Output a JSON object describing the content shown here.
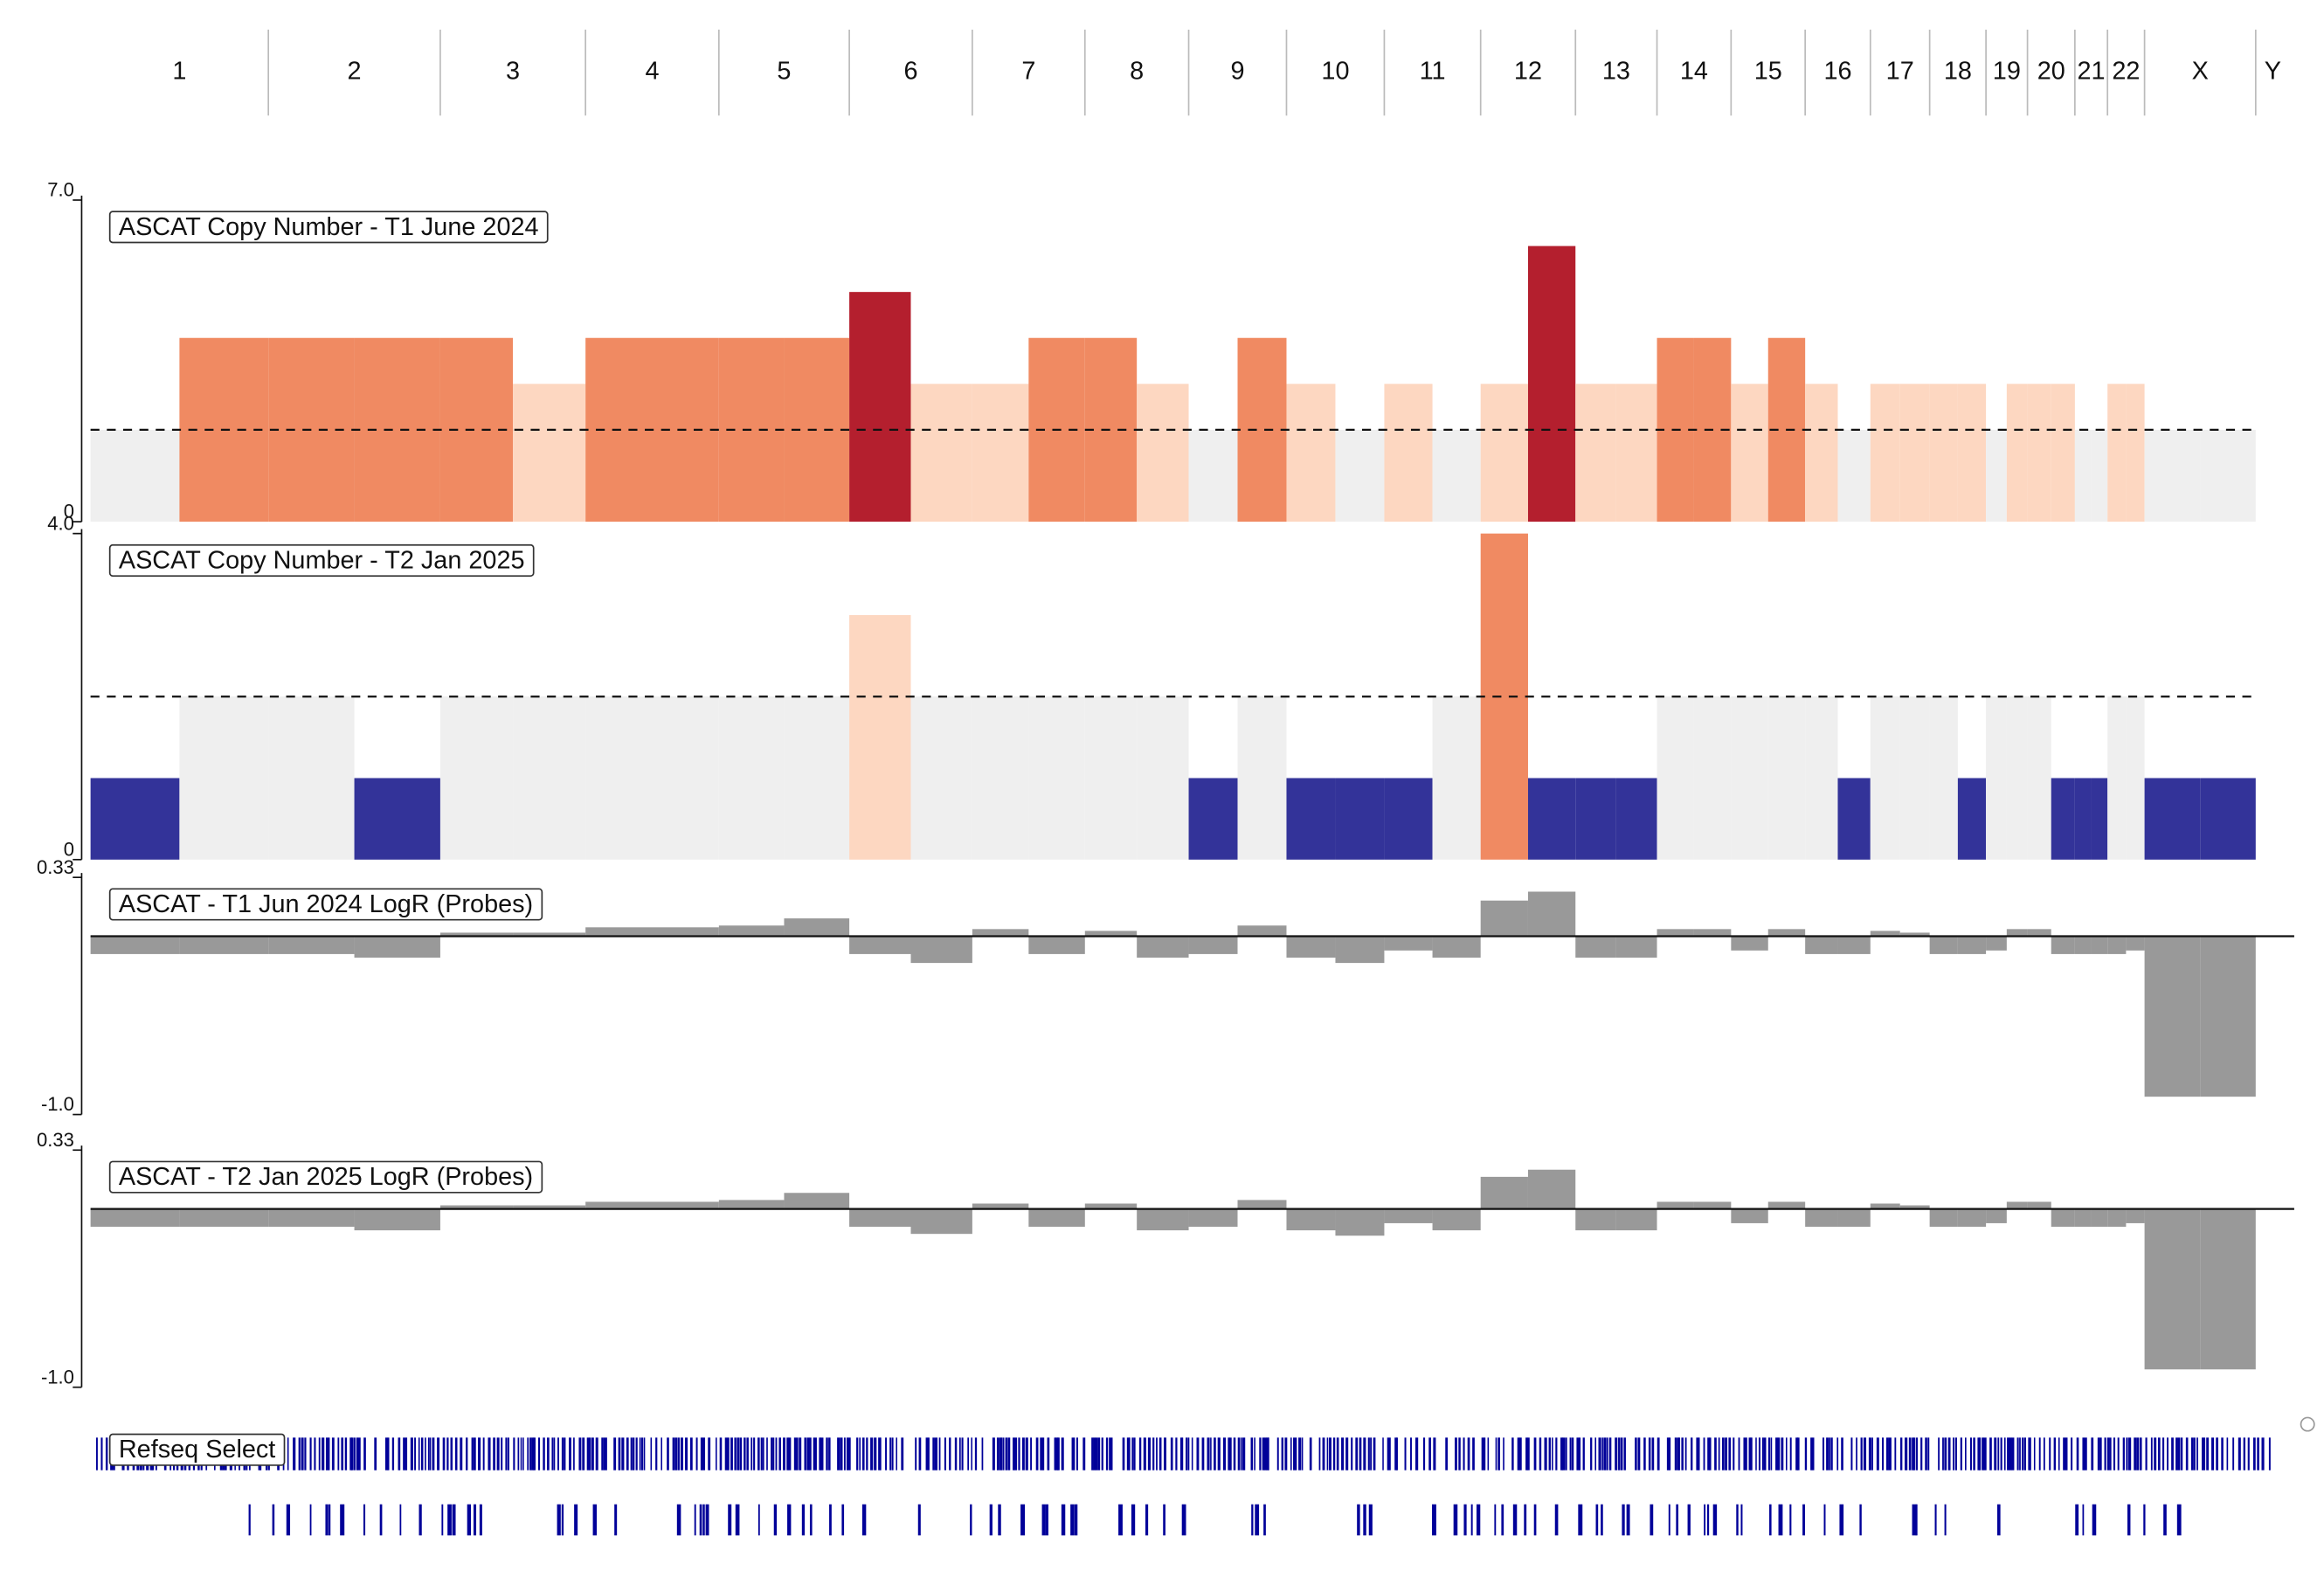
{
  "chromosomes": [
    "1",
    "2",
    "3",
    "4",
    "5",
    "6",
    "7",
    "8",
    "9",
    "10",
    "11",
    "12",
    "13",
    "14",
    "15",
    "16",
    "17",
    "18",
    "19",
    "20",
    "21",
    "22",
    "X",
    "Y"
  ],
  "colors": {
    "loss": "#333399",
    "neutral": "#efefef",
    "gain": "#fdd7c1",
    "amp": "#f08a62",
    "high": "#b41f2e",
    "logr": "#999999",
    "gene": "#000099"
  },
  "tracks": [
    {
      "name": "ASCAT Copy Number - T1 June 2024",
      "kind": "copy_number",
      "ylim": [
        0,
        7
      ],
      "yticks": [
        0,
        {
          "value": 7,
          "label": "7.0"
        }
      ],
      "reference": 2,
      "values": [
        [
          2,
          4
        ],
        [
          4,
          4
        ],
        [
          4,
          3
        ],
        [
          4,
          4
        ],
        [
          4,
          4
        ],
        [
          5,
          3
        ],
        [
          3,
          4
        ],
        [
          4,
          3
        ],
        [
          2,
          4
        ],
        [
          3,
          2
        ],
        [
          3,
          2
        ],
        [
          3,
          6
        ],
        [
          3,
          3
        ],
        [
          4,
          4
        ],
        [
          3,
          4
        ],
        [
          3,
          2
        ],
        [
          3,
          3
        ],
        [
          3,
          3
        ],
        [
          2,
          3
        ],
        [
          3,
          3
        ],
        [
          2,
          2
        ],
        [
          3,
          3
        ],
        [
          2,
          2
        ],
        [
          null,
          null
        ]
      ]
    },
    {
      "name": "ASCAT Copy Number - T2 Jan 2025",
      "kind": "copy_number",
      "ylim": [
        0,
        4
      ],
      "yticks": [
        0,
        {
          "value": 4,
          "label": "4.0"
        }
      ],
      "reference": 2,
      "values": [
        [
          1,
          2
        ],
        [
          2,
          1
        ],
        [
          2,
          2
        ],
        [
          2,
          2
        ],
        [
          2,
          2
        ],
        [
          3,
          2
        ],
        [
          2,
          2
        ],
        [
          2,
          2
        ],
        [
          1,
          2
        ],
        [
          1,
          1
        ],
        [
          1,
          2
        ],
        [
          4,
          1
        ],
        [
          1,
          1
        ],
        [
          2,
          2
        ],
        [
          2,
          2
        ],
        [
          2,
          1
        ],
        [
          2,
          2
        ],
        [
          2,
          1
        ],
        [
          2,
          2
        ],
        [
          2,
          1
        ],
        [
          1,
          1
        ],
        [
          2,
          2
        ],
        [
          1,
          1
        ],
        [
          null,
          null
        ]
      ]
    },
    {
      "name": "ASCAT - T1 Jun 2024 LogR (Probes)",
      "kind": "logr",
      "ylim": [
        -1,
        0.33
      ],
      "yticks": [
        {
          "value": -1,
          "label": "-1.0"
        },
        0.33
      ],
      "reference": 0,
      "values": [
        [
          -0.1,
          -0.1
        ],
        [
          -0.1,
          -0.12
        ],
        [
          0.02,
          0.02
        ],
        [
          0.05,
          0.05
        ],
        [
          0.06,
          0.1
        ],
        [
          -0.1,
          -0.15
        ],
        [
          0.04,
          -0.1
        ],
        [
          0.03,
          -0.12
        ],
        [
          -0.1,
          0.06
        ],
        [
          -0.12,
          -0.15
        ],
        [
          -0.08,
          -0.12
        ],
        [
          0.2,
          0.25
        ],
        [
          -0.12,
          -0.12
        ],
        [
          0.04,
          0.04
        ],
        [
          -0.08,
          0.04
        ],
        [
          -0.1,
          -0.1
        ],
        [
          0.03,
          0.02
        ],
        [
          -0.1,
          -0.1
        ],
        [
          -0.08,
          0.04
        ],
        [
          0.04,
          -0.1
        ],
        [
          -0.1,
          -0.1
        ],
        [
          -0.1,
          -0.08
        ],
        [
          -0.9,
          -0.9
        ],
        [
          null,
          null
        ]
      ]
    },
    {
      "name": "ASCAT - T2 Jan 2025 LogR (Probes)",
      "kind": "logr",
      "ylim": [
        -1,
        0.33
      ],
      "yticks": [
        {
          "value": -1,
          "label": "-1.0"
        },
        0.33
      ],
      "reference": 0,
      "values": [
        [
          -0.1,
          -0.1
        ],
        [
          -0.1,
          -0.12
        ],
        [
          0.02,
          0.02
        ],
        [
          0.04,
          0.04
        ],
        [
          0.05,
          0.09
        ],
        [
          -0.1,
          -0.14
        ],
        [
          0.03,
          -0.1
        ],
        [
          0.03,
          -0.12
        ],
        [
          -0.1,
          0.05
        ],
        [
          -0.12,
          -0.15
        ],
        [
          -0.08,
          -0.12
        ],
        [
          0.18,
          0.22
        ],
        [
          -0.12,
          -0.12
        ],
        [
          0.04,
          0.04
        ],
        [
          -0.08,
          0.04
        ],
        [
          -0.1,
          -0.1
        ],
        [
          0.03,
          0.02
        ],
        [
          -0.1,
          -0.1
        ],
        [
          -0.08,
          0.04
        ],
        [
          0.04,
          -0.1
        ],
        [
          -0.1,
          -0.1
        ],
        [
          -0.1,
          -0.08
        ],
        [
          -0.9,
          -0.9
        ],
        [
          null,
          null
        ]
      ]
    }
  ],
  "gene_track": {
    "name": "Refseq Select"
  }
}
